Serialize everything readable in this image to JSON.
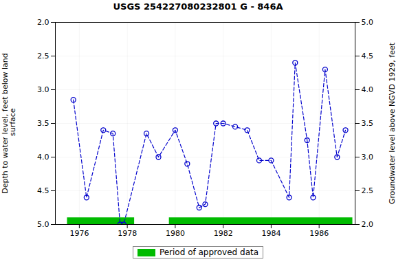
{
  "chart_data": {
    "type": "line",
    "title": "USGS 254227080232801 G  - 846A",
    "ylabel": "Depth to water level, feet below land\n surface",
    "y2label": "Groundwater level above NGVD 1929, feet",
    "x": [
      1975.75,
      1976.3,
      1977.0,
      1977.4,
      1977.7,
      1977.85,
      1978.8,
      1979.3,
      1980.0,
      1980.5,
      1981.0,
      1981.25,
      1981.7,
      1982.0,
      1982.5,
      1983.0,
      1983.5,
      1984.0,
      1984.75,
      1985.0,
      1985.5,
      1985.75,
      1986.25,
      1986.75,
      1987.1
    ],
    "values": [
      3.15,
      4.6,
      3.6,
      3.65,
      5.0,
      5.0,
      3.65,
      4.0,
      3.6,
      4.1,
      4.75,
      4.7,
      3.5,
      3.5,
      3.55,
      3.6,
      4.05,
      4.05,
      4.6,
      2.6,
      3.75,
      4.6,
      2.7,
      4.0,
      3.6
    ],
    "color": "#0000cc",
    "marker": "o",
    "line_style": "dashed",
    "xlim": [
      1975.0,
      1987.5
    ],
    "xticks": [
      1976,
      1978,
      1980,
      1982,
      1984,
      1986
    ],
    "ylim": [
      5.0,
      2.0
    ],
    "yticks": [
      {
        "value": 2.0,
        "label": "2.0"
      },
      2.5,
      {
        "value": 3.0,
        "label": "3.0"
      },
      3.5,
      {
        "value": 4.0,
        "label": "4.0"
      },
      4.5,
      {
        "value": 5.0,
        "label": "5.0"
      }
    ],
    "y2lim": [
      2.0,
      5.0
    ],
    "y2ticks": [
      {
        "value": 5.0,
        "label": "5.0"
      },
      4.5,
      {
        "value": 4.0,
        "label": "4.0"
      },
      3.5,
      {
        "value": 3.0,
        "label": "3.0"
      },
      2.5,
      {
        "value": 2.0,
        "label": "2.0"
      }
    ],
    "grid": true,
    "legend": "bottom",
    "spans": [
      {
        "name": "Period of approved data",
        "color": "#00bb00",
        "y": [
          4.9,
          5.0
        ],
        "periods": [
          [
            1975.5,
            1978.3
          ],
          [
            1979.75,
            1987.4
          ]
        ]
      }
    ]
  }
}
